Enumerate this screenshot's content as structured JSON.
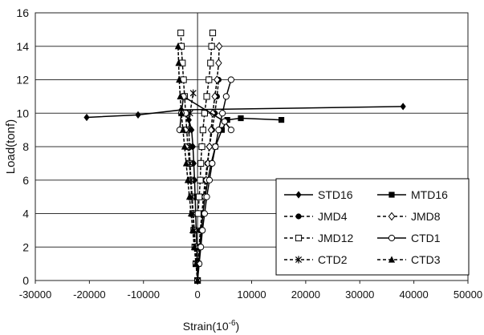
{
  "chart_data": {
    "type": "line",
    "title": "",
    "xlabel": "Strain(10",
    "xlabel_sup": "-6",
    "xlabel_end": ")",
    "ylabel": "Load(tonf)",
    "xlim": [
      -30000,
      50000
    ],
    "ylim": [
      0,
      16
    ],
    "x_ticks": [
      -30000,
      -20000,
      -10000,
      0,
      10000,
      20000,
      30000,
      40000,
      50000
    ],
    "y_ticks": [
      0,
      2,
      4,
      6,
      8,
      10,
      12,
      14,
      16
    ],
    "x_tick_labels": [
      "-30000",
      "-20000",
      "-10000",
      "0",
      "10000",
      "20000",
      "30000",
      "40000",
      "50000"
    ],
    "y_tick_labels": [
      "0",
      "2",
      "4",
      "6",
      "8",
      "10",
      "12",
      "14",
      "16"
    ],
    "grid": "horizontal",
    "legend_position": "bottom-right",
    "series": [
      {
        "name": "STD16",
        "marker": "diamond-filled",
        "dash": "solid",
        "points": [
          [
            0,
            0
          ],
          [
            -80,
            1
          ],
          [
            -150,
            2
          ],
          [
            -250,
            3
          ],
          [
            -350,
            4
          ],
          [
            -450,
            5
          ],
          [
            -550,
            6
          ],
          [
            -700,
            7
          ],
          [
            -850,
            8
          ],
          [
            -1100,
            9
          ],
          [
            -1600,
            9.6
          ],
          [
            -3000,
            10.2
          ],
          [
            -11000,
            9.9
          ],
          [
            -20500,
            9.75
          ]
        ],
        "extra_points": [
          [
            38000,
            10.4
          ]
        ]
      },
      {
        "name": "MTD16",
        "marker": "square-filled",
        "dash": "solid",
        "points": [
          [
            0,
            0
          ],
          [
            200,
            1
          ],
          [
            400,
            2
          ],
          [
            700,
            3
          ],
          [
            1000,
            4
          ],
          [
            1400,
            5
          ],
          [
            1900,
            6
          ],
          [
            2500,
            7
          ],
          [
            3300,
            8
          ],
          [
            4500,
            9
          ],
          [
            5500,
            9.6
          ],
          [
            8000,
            9.7
          ],
          [
            15500,
            9.6
          ]
        ]
      },
      {
        "name": "JMD4",
        "marker": "circle-filled",
        "dash": "dashed",
        "points": [
          [
            0,
            0
          ],
          [
            100,
            1
          ],
          [
            300,
            2
          ],
          [
            500,
            3
          ],
          [
            800,
            4
          ],
          [
            1100,
            5
          ],
          [
            1400,
            6
          ],
          [
            1800,
            7
          ],
          [
            2200,
            8
          ],
          [
            2700,
            9
          ],
          [
            3200,
            10
          ],
          [
            3600,
            11
          ],
          [
            3900,
            12
          ]
        ]
      },
      {
        "name": "JMD8",
        "marker": "diamond-open",
        "dash": "dashed",
        "points": [
          [
            0,
            0
          ],
          [
            200,
            1
          ],
          [
            400,
            2
          ],
          [
            700,
            3
          ],
          [
            1000,
            4
          ],
          [
            1300,
            5
          ],
          [
            1600,
            6
          ],
          [
            1900,
            7
          ],
          [
            2200,
            8
          ],
          [
            2500,
            9
          ],
          [
            2800,
            10
          ],
          [
            3200,
            11
          ],
          [
            3600,
            12
          ],
          [
            3900,
            13
          ],
          [
            4000,
            14
          ]
        ]
      },
      {
        "name": "JMD12",
        "marker": "square-open",
        "dash": "dashed",
        "points": [
          [
            0,
            0
          ],
          [
            -300,
            1
          ],
          [
            -500,
            2
          ],
          [
            -700,
            3
          ],
          [
            -900,
            4
          ],
          [
            -1100,
            5
          ],
          [
            -1300,
            6
          ],
          [
            -1500,
            7
          ],
          [
            -1800,
            8
          ],
          [
            -2000,
            9
          ],
          [
            -2200,
            10
          ],
          [
            -2400,
            11
          ],
          [
            -2600,
            12
          ],
          [
            -2800,
            13
          ],
          [
            -3000,
            14
          ],
          [
            -3100,
            14.8
          ]
        ],
        "extra_points": [
          [
            2800,
            14.8
          ],
          [
            2600,
            14
          ],
          [
            2400,
            13
          ],
          [
            2100,
            12
          ],
          [
            1700,
            11
          ],
          [
            1300,
            10
          ],
          [
            1000,
            9
          ],
          [
            800,
            8
          ],
          [
            600,
            7
          ],
          [
            500,
            6
          ],
          [
            300,
            5
          ],
          [
            100,
            4
          ]
        ]
      },
      {
        "name": "CTD1",
        "marker": "circle-open",
        "dash": "solid",
        "points": [
          [
            0,
            0
          ],
          [
            300,
            1
          ],
          [
            600,
            2
          ],
          [
            900,
            3
          ],
          [
            1300,
            4
          ],
          [
            1700,
            5
          ],
          [
            2200,
            6
          ],
          [
            2700,
            7
          ],
          [
            3300,
            8
          ],
          [
            3900,
            9
          ],
          [
            4600,
            10
          ],
          [
            5300,
            11
          ],
          [
            6200,
            12
          ]
        ],
        "extra_points": [
          [
            -3300,
            9
          ],
          [
            -3000,
            10
          ],
          [
            -2600,
            11
          ],
          [
            5000,
            9.5
          ],
          [
            6200,
            9
          ]
        ]
      },
      {
        "name": "CTD2",
        "marker": "asterisk",
        "dash": "dashed",
        "points": [
          [
            0,
            0
          ],
          [
            -200,
            1
          ],
          [
            -400,
            2
          ],
          [
            -600,
            3
          ],
          [
            -800,
            4
          ],
          [
            -1000,
            5
          ],
          [
            -1200,
            6
          ],
          [
            -1400,
            7
          ],
          [
            -1500,
            8
          ],
          [
            -1600,
            9
          ],
          [
            -1400,
            10
          ],
          [
            -800,
            11.2
          ]
        ]
      },
      {
        "name": "CTD3",
        "marker": "triangle-filled",
        "dash": "dashed",
        "points": [
          [
            0,
            0
          ],
          [
            -300,
            1
          ],
          [
            -600,
            2
          ],
          [
            -900,
            3
          ],
          [
            -1200,
            4
          ],
          [
            -1500,
            5
          ],
          [
            -1800,
            6
          ],
          [
            -2100,
            7
          ],
          [
            -2400,
            8
          ],
          [
            -2700,
            9
          ],
          [
            -3000,
            10
          ],
          [
            -3200,
            11
          ],
          [
            -3400,
            12
          ],
          [
            -3500,
            13
          ],
          [
            -3600,
            14
          ]
        ]
      }
    ]
  }
}
